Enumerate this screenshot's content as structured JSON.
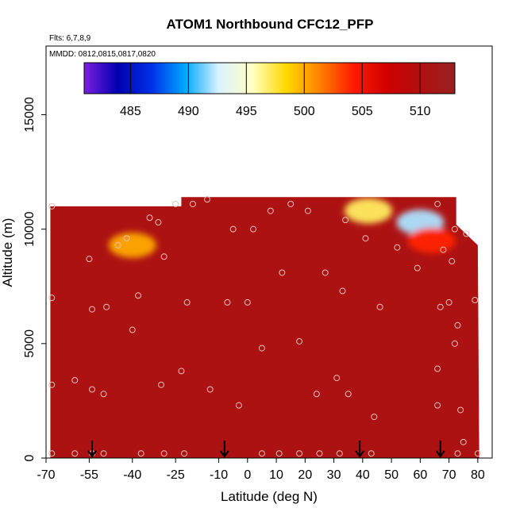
{
  "chart_data": {
    "type": "heatmap",
    "title": "ATOM1 Northbound CFC12_PFP",
    "flights_note": "Flts: 6,7,8,9",
    "dates_note": "MMDD: 0812,0815,0817,0820",
    "xlabel": "Latitude (deg N)",
    "ylabel": "Altitude (m)",
    "xlim": [
      -70,
      85
    ],
    "ylim": [
      0,
      18000
    ],
    "x_ticks": [
      -70,
      -55,
      -40,
      -25,
      -10,
      0,
      10,
      20,
      30,
      40,
      50,
      60,
      70,
      80
    ],
    "x_tick_labels": [
      "-70",
      "-55",
      "-40",
      "-25",
      "-10",
      "0",
      "10",
      "20",
      "30",
      "40",
      "50",
      "60",
      "70",
      "80"
    ],
    "y_ticks": [
      0,
      5000,
      10000,
      15000
    ],
    "y_tick_labels": [
      "0",
      "5000",
      "10000",
      "15000"
    ],
    "colorbar": {
      "min": 481,
      "max": 513,
      "ticks": [
        485,
        490,
        495,
        500,
        505,
        510
      ],
      "tick_labels": [
        "485",
        "490",
        "495",
        "500",
        "505",
        "510"
      ],
      "colors": [
        "#7b1fe0",
        "#0000b0",
        "#0030e8",
        "#00a8ff",
        "#dcf2ff",
        "#ffffc0",
        "#ffd800",
        "#ff8000",
        "#ff1a00",
        "#d00000",
        "#b01010",
        "#982020"
      ]
    },
    "background_value": 510.5,
    "field_extent": {
      "lat_range": [
        -68.5,
        80.5
      ],
      "top_altitude_by_lat": [
        [
          -68.5,
          11000
        ],
        [
          -23,
          11000
        ],
        [
          -23,
          11400
        ],
        [
          72.5,
          11400
        ],
        [
          72.5,
          10200
        ],
        [
          80,
          9300
        ]
      ]
    },
    "anomalies": [
      {
        "lat": -40,
        "alt": 9300,
        "value": 500
      },
      {
        "lat": 42,
        "alt": 10800,
        "value": 497
      },
      {
        "lat": 60,
        "alt": 10300,
        "value": 492
      },
      {
        "lat": 64,
        "alt": 9500,
        "value": 504
      }
    ],
    "sample_points": [
      [
        -68,
        11000
      ],
      [
        -68,
        7000
      ],
      [
        -68,
        3200
      ],
      [
        -68,
        200
      ],
      [
        -60,
        3400
      ],
      [
        -60,
        200
      ],
      [
        -55,
        8700
      ],
      [
        -54,
        6500
      ],
      [
        -54,
        3000
      ],
      [
        -54,
        200
      ],
      [
        -50,
        2800
      ],
      [
        -50,
        200
      ],
      [
        -49,
        6600
      ],
      [
        -45,
        9300
      ],
      [
        -42,
        9600
      ],
      [
        -40,
        5600
      ],
      [
        -38,
        7100
      ],
      [
        -37,
        200
      ],
      [
        -34,
        10500
      ],
      [
        -31,
        10300
      ],
      [
        -30,
        3200
      ],
      [
        -29,
        8800
      ],
      [
        -29,
        200
      ],
      [
        -25,
        11100
      ],
      [
        -23,
        3800
      ],
      [
        -22,
        200
      ],
      [
        -21,
        6800
      ],
      [
        -19,
        11100
      ],
      [
        -14,
        11300
      ],
      [
        -13,
        3000
      ],
      [
        -7,
        6800
      ],
      [
        -5,
        10000
      ],
      [
        -3,
        2300
      ],
      [
        0,
        6800
      ],
      [
        2,
        10000
      ],
      [
        5,
        4800
      ],
      [
        5,
        200
      ],
      [
        8,
        10800
      ],
      [
        11,
        200
      ],
      [
        12,
        8100
      ],
      [
        15,
        11100
      ],
      [
        18,
        5100
      ],
      [
        18,
        200
      ],
      [
        21,
        10800
      ],
      [
        24,
        2800
      ],
      [
        25,
        200
      ],
      [
        27,
        8100
      ],
      [
        31,
        3500
      ],
      [
        32,
        200
      ],
      [
        33,
        7300
      ],
      [
        34,
        10400
      ],
      [
        35,
        2800
      ],
      [
        41,
        9600
      ],
      [
        43,
        200
      ],
      [
        44,
        1800
      ],
      [
        46,
        6600
      ],
      [
        52,
        9200
      ],
      [
        59,
        8300
      ],
      [
        66,
        11100
      ],
      [
        66,
        3900
      ],
      [
        66,
        2300
      ],
      [
        67,
        6600
      ],
      [
        68,
        9100
      ],
      [
        70,
        6800
      ],
      [
        71,
        8600
      ],
      [
        72,
        10000
      ],
      [
        72,
        5000
      ],
      [
        73,
        200
      ],
      [
        73,
        5800
      ],
      [
        74,
        2100
      ],
      [
        75,
        700
      ],
      [
        76,
        9800
      ],
      [
        79,
        6900
      ],
      [
        80,
        200
      ]
    ],
    "arrow_latitudes": [
      -54,
      -8,
      39,
      67
    ]
  }
}
